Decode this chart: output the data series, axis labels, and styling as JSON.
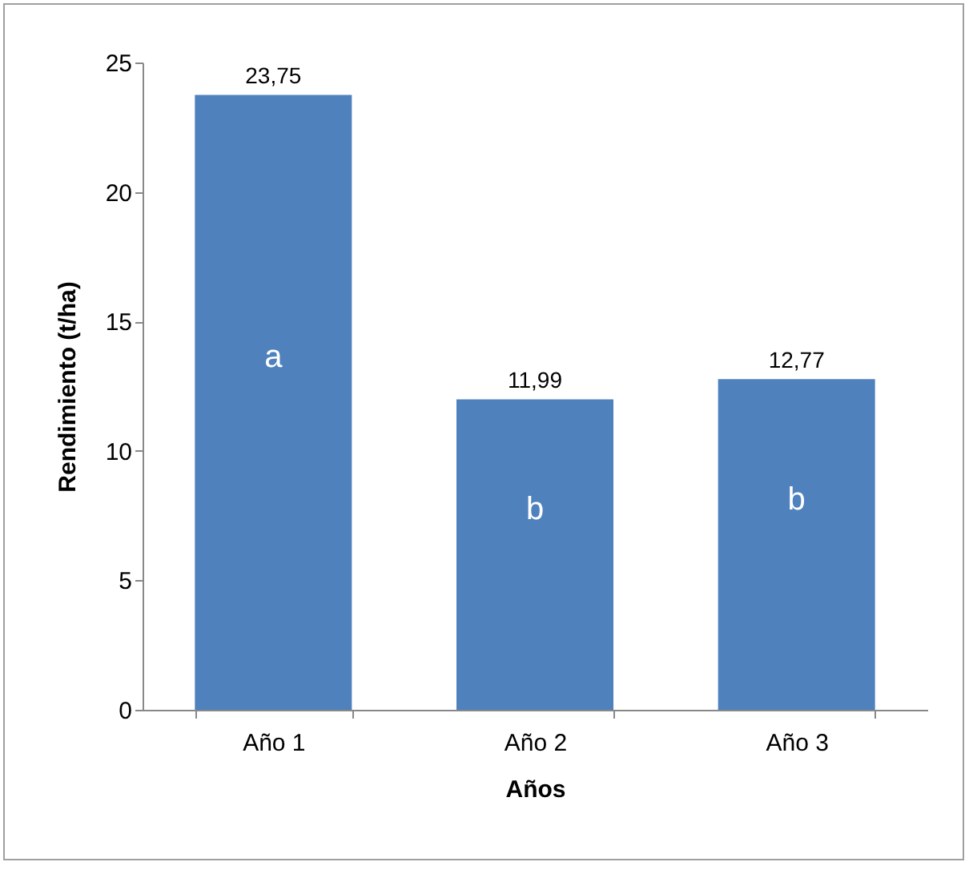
{
  "chart_data": {
    "type": "bar",
    "xlabel": "Años",
    "ylabel": "Rendimiento (t/ha)",
    "categories": [
      "Año 1",
      "Año 2",
      "Año 3"
    ],
    "values": [
      23.75,
      11.99,
      12.77
    ],
    "color": "#4f81bd",
    "value_labels": [
      "23,75",
      "11,99",
      "12,77"
    ],
    "annotations": [
      "a",
      "b",
      "b"
    ],
    "ylim": [
      0,
      25
    ],
    "yticks": [
      0,
      5,
      10,
      15,
      20,
      25
    ],
    "grid": false
  }
}
